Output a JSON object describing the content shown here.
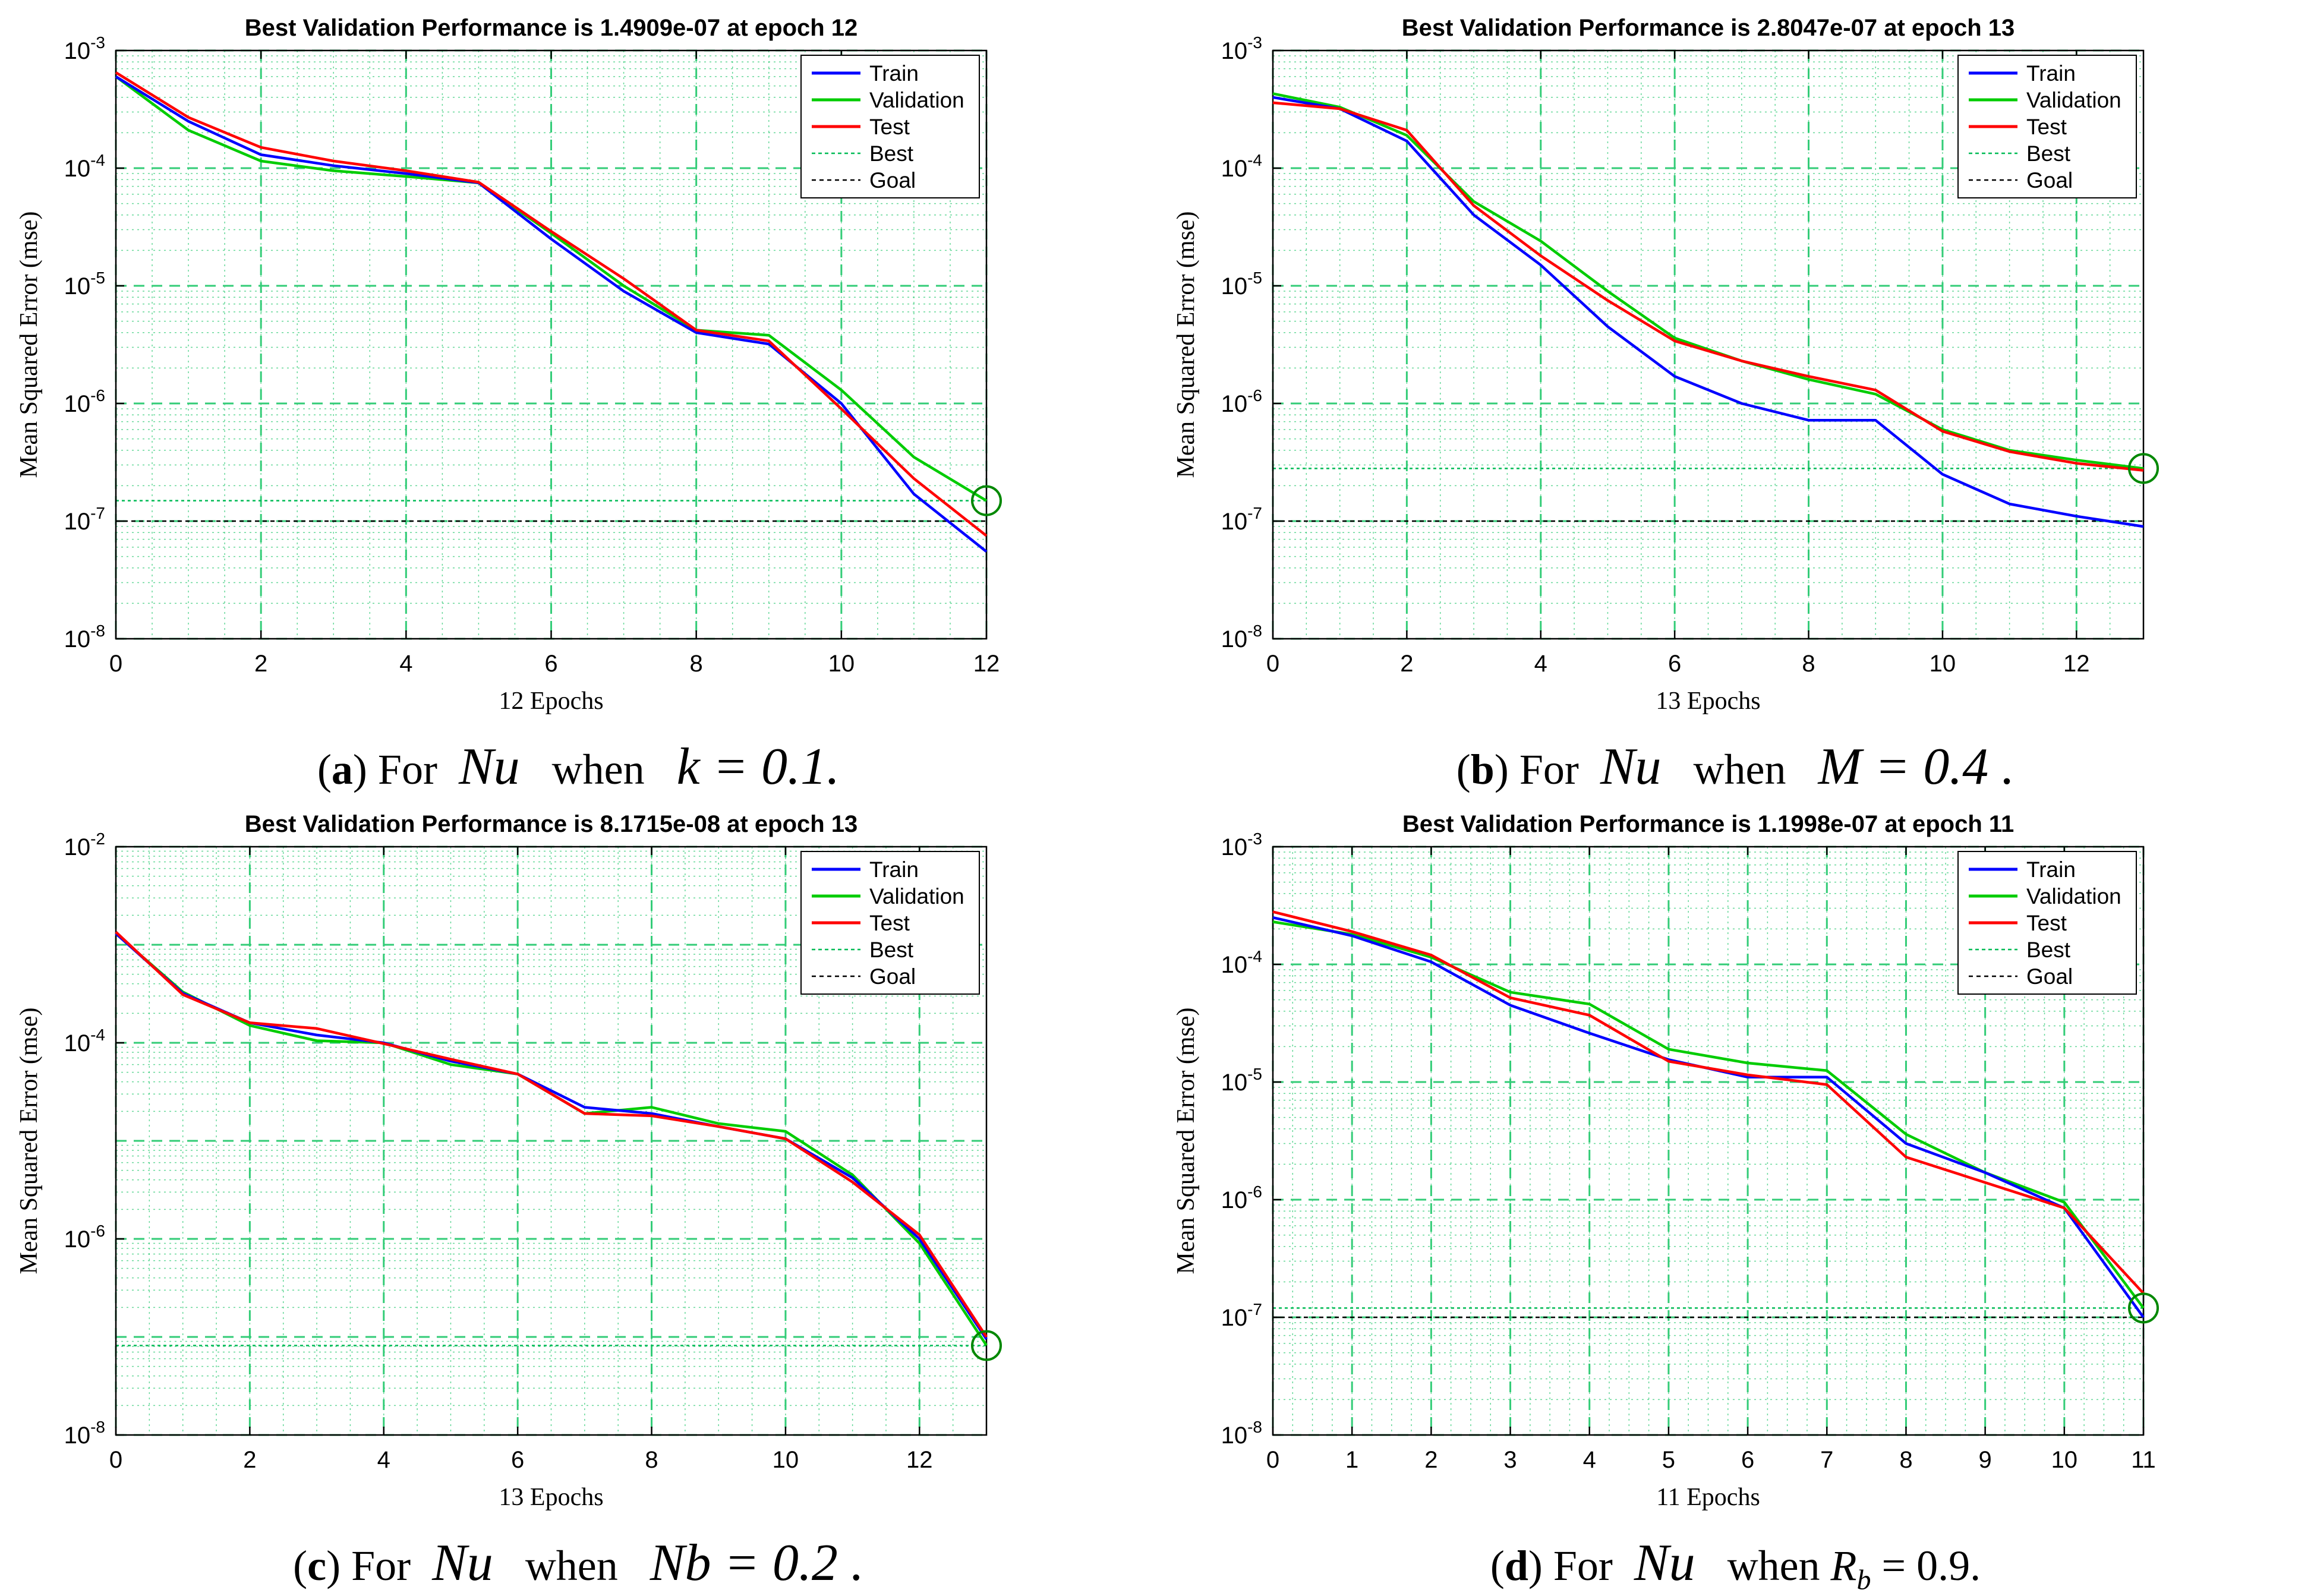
{
  "legend_labels": [
    "Train",
    "Validation",
    "Test",
    "Best",
    "Goal"
  ],
  "colors": {
    "train": "#0000ff",
    "validation": "#00cc00",
    "test": "#ff0000",
    "best": "#00bb55",
    "goal": "#000000",
    "grid": "#33cc77"
  },
  "panels": [
    {
      "caption": {
        "letter": "a",
        "pre": "For",
        "sym": "Nu",
        "mid": "when",
        "eq": "k = 0.1."
      },
      "chart_data": {
        "type": "line",
        "title": "Best Validation Performance is 1.4909e-07 at epoch 12",
        "xlabel": "12 Epochs",
        "ylabel": "Mean Squared Error  (mse)",
        "xlim": [
          0,
          12
        ],
        "xticks": [
          0,
          2,
          4,
          6,
          8,
          10,
          12
        ],
        "y_scale": "log",
        "ylim": [
          1e-08,
          0.001
        ],
        "yticks": [
          {
            "value": 1e-08,
            "label": "10-8"
          },
          {
            "value": 1e-07,
            "label": "10-7"
          },
          {
            "value": 1e-06,
            "label": "10-6"
          },
          {
            "value": 1e-05,
            "label": "10-5"
          },
          {
            "value": 0.0001,
            "label": "10-4"
          },
          {
            "value": 0.001,
            "label": "10-3"
          }
        ],
        "x": [
          0,
          1,
          2,
          3,
          4,
          5,
          6,
          7,
          8,
          9,
          10,
          11,
          12
        ],
        "series": [
          {
            "name": "Train",
            "values": [
              0.0006,
              0.00025,
              0.00013,
              0.000105,
              9e-05,
              7.5e-05,
              2.5e-05,
              9e-06,
              4e-06,
              3.2e-06,
              1e-06,
              1.7e-07,
              5.5e-08
            ]
          },
          {
            "name": "Validation",
            "values": [
              0.0006,
              0.00021,
              0.000115,
              9.5e-05,
              8.5e-05,
              7.5e-05,
              2.8e-05,
              1e-05,
              4.2e-06,
              3.8e-06,
              1.3e-06,
              3.5e-07,
              1.49e-07
            ]
          },
          {
            "name": "Test",
            "values": [
              0.00065,
              0.00027,
              0.00015,
              0.000115,
              9.5e-05,
              7.6e-05,
              2.9e-05,
              1.15e-05,
              4.2e-06,
              3.4e-06,
              9e-07,
              2.3e-07,
              7.5e-08
            ]
          }
        ],
        "best": {
          "epoch": 12,
          "value": 1.4909e-07
        },
        "goal": 1e-07,
        "legend": "top-right",
        "grid": true
      }
    },
    {
      "caption": {
        "letter": "b",
        "pre": "For",
        "sym": "Nu",
        "mid": "when",
        "eq": "M = 0.4 ."
      },
      "chart_data": {
        "type": "line",
        "title": "Best Validation Performance is 2.8047e-07 at epoch 13",
        "xlabel": "13 Epochs",
        "ylabel": "Mean Squared Error  (mse)",
        "xlim": [
          0,
          13
        ],
        "xticks": [
          0,
          2,
          4,
          6,
          8,
          10,
          12
        ],
        "y_scale": "log",
        "ylim": [
          1e-08,
          0.001
        ],
        "yticks": [
          {
            "value": 1e-08,
            "label": "10-8"
          },
          {
            "value": 1e-07,
            "label": "10-7"
          },
          {
            "value": 1e-06,
            "label": "10-6"
          },
          {
            "value": 1e-05,
            "label": "10-5"
          },
          {
            "value": 0.0001,
            "label": "10-4"
          },
          {
            "value": 0.001,
            "label": "10-3"
          }
        ],
        "x": [
          0,
          1,
          2,
          3,
          4,
          5,
          6,
          7,
          8,
          9,
          10,
          11,
          12,
          13
        ],
        "series": [
          {
            "name": "Train",
            "values": [
              0.0004,
              0.00032,
              0.00017,
              4e-05,
              1.5e-05,
              4.5e-06,
              1.7e-06,
              1e-06,
              7.2e-07,
              7.2e-07,
              2.5e-07,
              1.4e-07,
              1.1e-07,
              9e-08
            ]
          },
          {
            "name": "Validation",
            "values": [
              0.00043,
              0.00033,
              0.00019,
              5.2e-05,
              2.4e-05,
              9e-06,
              3.6e-06,
              2.3e-06,
              1.6e-06,
              1.2e-06,
              6e-07,
              4e-07,
              3.3e-07,
              2.8e-07
            ]
          },
          {
            "name": "Test",
            "values": [
              0.00036,
              0.00032,
              0.00021,
              4.8e-05,
              1.8e-05,
              7.5e-06,
              3.4e-06,
              2.3e-06,
              1.7e-06,
              1.3e-06,
              5.8e-07,
              3.9e-07,
              3.1e-07,
              2.7e-07
            ]
          }
        ],
        "best": {
          "epoch": 13,
          "value": 2.8047e-07
        },
        "goal": 1e-07,
        "legend": "top-right",
        "grid": true
      }
    },
    {
      "caption": {
        "letter": "c",
        "pre": "For",
        "sym": "Nu",
        "mid": "when",
        "eq": "Nb = 0.2 ."
      },
      "chart_data": {
        "type": "line",
        "title": "Best Validation Performance is 8.1715e-08 at epoch 13",
        "xlabel": "13 Epochs",
        "ylabel": "Mean Squared Error  (mse)",
        "xlim": [
          0,
          13
        ],
        "xticks": [
          0,
          2,
          4,
          6,
          8,
          10,
          12
        ],
        "y_scale": "log",
        "ylim": [
          1e-08,
          0.01
        ],
        "yticks": [
          {
            "value": 1e-08,
            "label": "10-8"
          },
          {
            "value": 1e-06,
            "label": "10-6"
          },
          {
            "value": 0.0001,
            "label": "10-4"
          },
          {
            "value": 0.01,
            "label": "10-2"
          }
        ],
        "x": [
          0,
          1,
          2,
          3,
          4,
          5,
          6,
          7,
          8,
          9,
          10,
          11,
          12,
          13
        ],
        "series": [
          {
            "name": "Train",
            "values": [
              0.0013,
              0.00032,
              0.00016,
              0.00012,
              0.0001,
              6.5e-05,
              4.8e-05,
              2.2e-05,
              1.9e-05,
              1.4e-05,
              1.05e-05,
              4.2e-06,
              1e-06,
              9.5e-08
            ]
          },
          {
            "name": "Validation",
            "values": [
              0.0013,
              0.00033,
              0.00015,
              0.000105,
              0.0001,
              6e-05,
              4.8e-05,
              1.9e-05,
              2.2e-05,
              1.5e-05,
              1.25e-05,
              4.5e-06,
              9e-07,
              8.2e-08
            ]
          },
          {
            "name": "Test",
            "values": [
              0.00135,
              0.00031,
              0.00016,
              0.00014,
              9.8e-05,
              6.8e-05,
              4.8e-05,
              1.9e-05,
              1.8e-05,
              1.4e-05,
              1.05e-05,
              3.8e-06,
              1.1e-06,
              1e-07
            ]
          }
        ],
        "best": {
          "epoch": 13,
          "value": 8.1715e-08
        },
        "goal": null,
        "legend": "top-right",
        "grid": true
      }
    },
    {
      "caption": {
        "letter": "d",
        "pre": "For",
        "sym": "Nu",
        "mid": "when",
        "eq_main": "R",
        "eq_sub": "b",
        "eq_tail": " = 0.9."
      },
      "chart_data": {
        "type": "line",
        "title": "Best Validation Performance is 1.1998e-07 at epoch 11",
        "xlabel": "11 Epochs",
        "ylabel": "Mean Squared Error  (mse)",
        "xlim": [
          0,
          11
        ],
        "xticks": [
          0,
          1,
          2,
          3,
          4,
          5,
          6,
          7,
          8,
          9,
          10,
          11
        ],
        "y_scale": "log",
        "ylim": [
          1e-08,
          0.001
        ],
        "yticks": [
          {
            "value": 1e-08,
            "label": "10-8"
          },
          {
            "value": 1e-07,
            "label": "10-7"
          },
          {
            "value": 1e-06,
            "label": "10-6"
          },
          {
            "value": 1e-05,
            "label": "10-5"
          },
          {
            "value": 0.0001,
            "label": "10-4"
          },
          {
            "value": 0.001,
            "label": "10-3"
          }
        ],
        "x": [
          0,
          1,
          2,
          3,
          4,
          5,
          6,
          7,
          8,
          9,
          10,
          11
        ],
        "series": [
          {
            "name": "Train",
            "values": [
              0.00025,
              0.000175,
              0.000105,
              4.5e-05,
              2.6e-05,
              1.55e-05,
              1.1e-05,
              1.1e-05,
              3e-06,
              1.7e-06,
              8.5e-07,
              1e-07
            ]
          },
          {
            "name": "Validation",
            "values": [
              0.00023,
              0.00018,
              0.000115,
              5.8e-05,
              4.6e-05,
              1.9e-05,
              1.45e-05,
              1.25e-05,
              3.6e-06,
              1.7e-06,
              9.5e-07,
              1.2e-07
            ]
          },
          {
            "name": "Test",
            "values": [
              0.00028,
              0.00019,
              0.00012,
              5.2e-05,
              3.7e-05,
              1.5e-05,
              1.15e-05,
              9.5e-06,
              2.3e-06,
              1.4e-06,
              8.5e-07,
              1.6e-07
            ]
          }
        ],
        "best": {
          "epoch": 11,
          "value": 1.1998e-07
        },
        "goal": 1e-07,
        "legend": "top-right",
        "grid": true
      }
    }
  ]
}
